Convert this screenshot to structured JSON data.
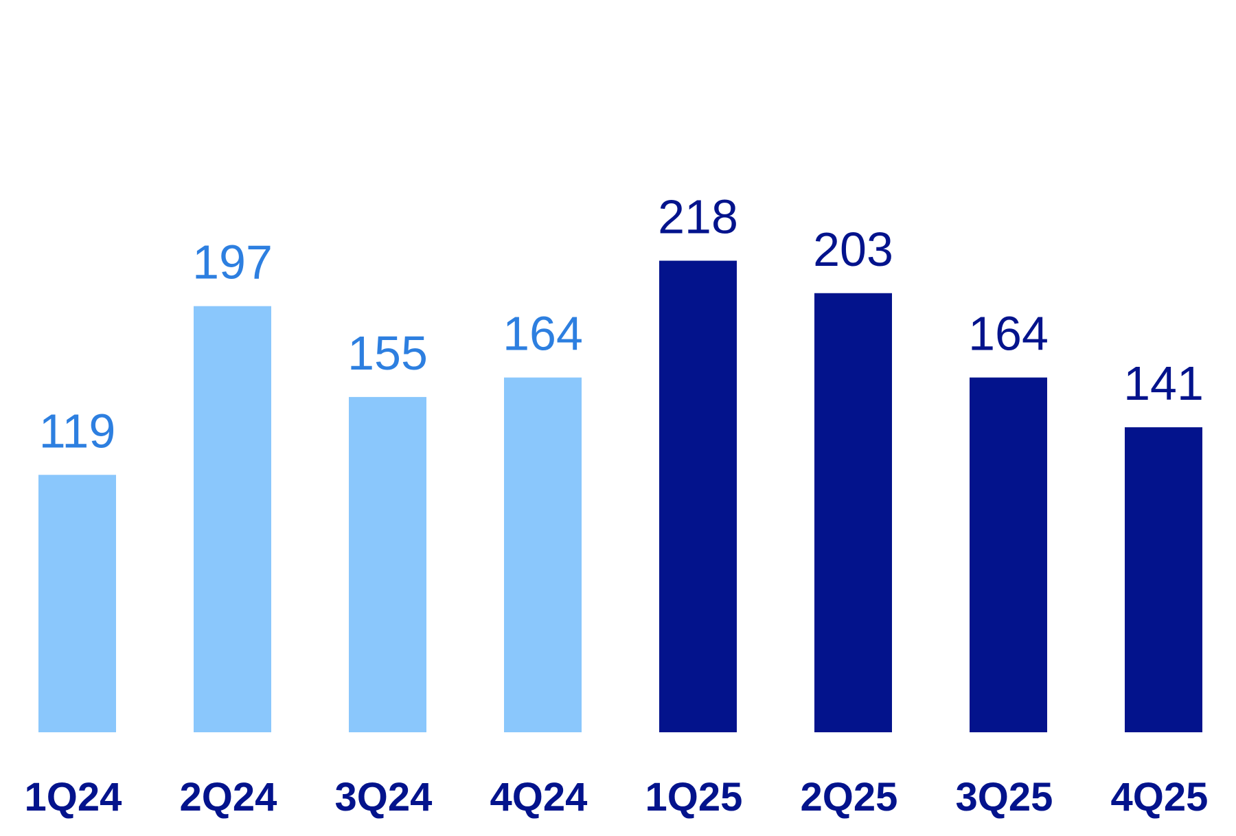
{
  "chart_data": {
    "type": "bar",
    "title": "",
    "xlabel": "",
    "ylabel": "",
    "categories": [
      "1Q24",
      "2Q24",
      "3Q24",
      "4Q24",
      "1Q25",
      "2Q25",
      "3Q25",
      "4Q25"
    ],
    "values": [
      119,
      197,
      155,
      164,
      218,
      203,
      164,
      141
    ],
    "value_labels": [
      "119",
      "197",
      "155",
      "164",
      "218",
      "203",
      "164",
      "141"
    ],
    "ylim": [
      0,
      300
    ],
    "grid": false,
    "legend": "none",
    "colors": {
      "bar_2024": "#8AC7FC",
      "bar_2025": "#03138C",
      "label_2024": "#2D7FE0",
      "label_2025": "#03138C",
      "category_label": "#03138C",
      "background": "#FFFFFF"
    },
    "bar_color_groups": [
      "2024",
      "2024",
      "2024",
      "2024",
      "2025",
      "2025",
      "2025",
      "2025"
    ]
  }
}
